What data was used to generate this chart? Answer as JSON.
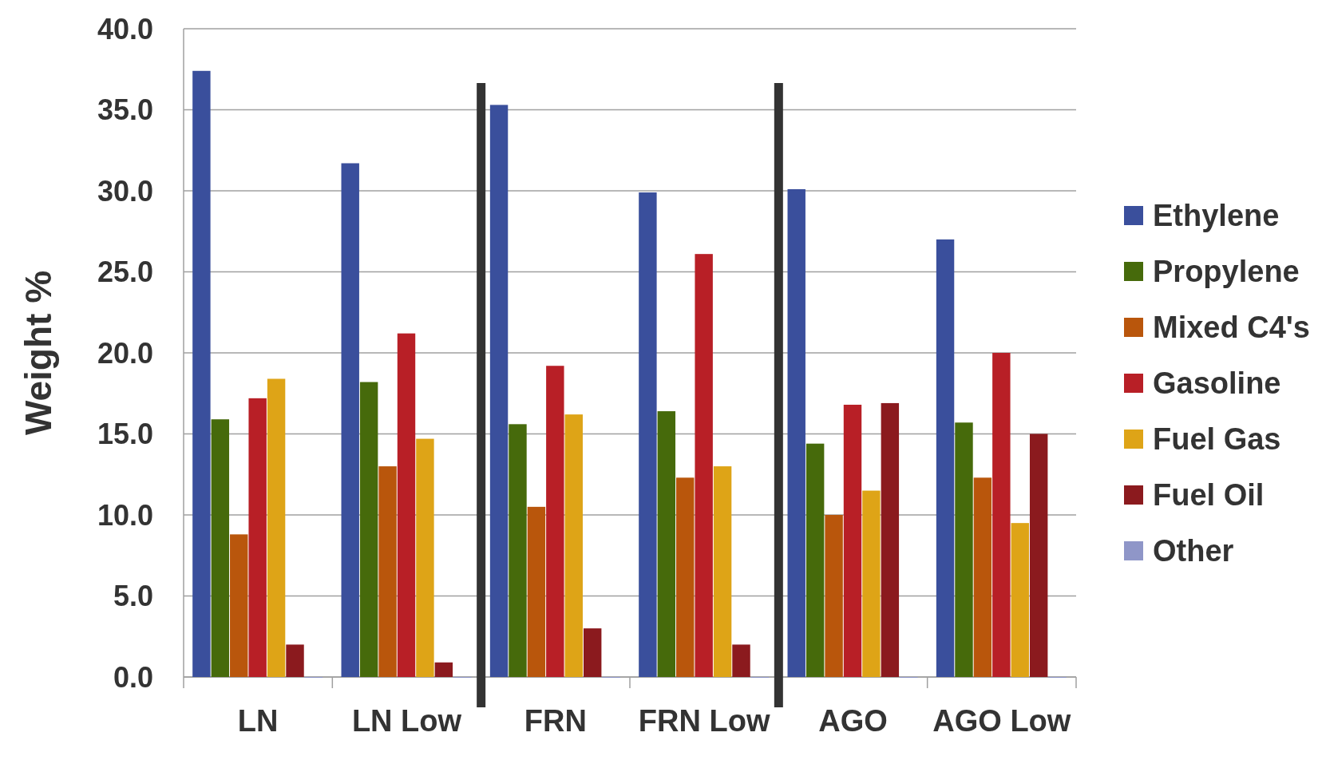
{
  "chart_data": {
    "type": "bar",
    "ylabel": "Weight %",
    "categories": [
      "LN",
      "LN Low",
      "FRN",
      "FRN Low",
      "AGO",
      "AGO Low"
    ],
    "series": [
      {
        "name": "Ethylene",
        "color": "#3a4f9c",
        "values": [
          37.4,
          31.7,
          35.3,
          29.9,
          30.1,
          27.0
        ]
      },
      {
        "name": "Propylene",
        "color": "#466a0b",
        "values": [
          15.9,
          18.2,
          15.6,
          16.4,
          14.4,
          15.7
        ]
      },
      {
        "name": "Mixed C4's",
        "color": "#b9560c",
        "values": [
          8.8,
          13.0,
          10.5,
          12.3,
          10.0,
          12.3
        ]
      },
      {
        "name": "Gasoline",
        "color": "#b81f26",
        "values": [
          17.2,
          21.2,
          19.2,
          26.1,
          16.8,
          20.0
        ]
      },
      {
        "name": "Fuel Gas",
        "color": "#dea417",
        "values": [
          18.4,
          14.7,
          16.2,
          13.0,
          11.5,
          9.5
        ]
      },
      {
        "name": "Fuel Oil",
        "color": "#8b1a1e",
        "values": [
          2.0,
          0.9,
          3.0,
          2.0,
          16.9,
          15.0
        ]
      },
      {
        "name": "Other",
        "color": "#8f96c8",
        "values": [
          0,
          0,
          0,
          0,
          0,
          0
        ]
      }
    ],
    "ylim": [
      0,
      40
    ],
    "yticks": [
      {
        "value": 0,
        "label": "0.0"
      },
      {
        "value": 5,
        "label": "5.0"
      },
      {
        "value": 10,
        "label": "10.0"
      },
      {
        "value": 15,
        "label": "15.0"
      },
      {
        "value": 20,
        "label": "20.0"
      },
      {
        "value": 25,
        "label": "25.0"
      },
      {
        "value": 30,
        "label": "30.0"
      },
      {
        "value": 35,
        "label": "35.0"
      },
      {
        "value": 40,
        "label": "40.0"
      }
    ],
    "grid": "y",
    "legend": "right"
  }
}
